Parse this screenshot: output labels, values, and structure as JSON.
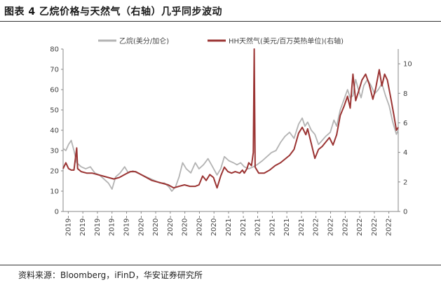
{
  "figure": {
    "title": "图表 4 乙烷价格与天然气（右轴）几乎同步波动",
    "source": "资料来源：Bloomberg，iFinD，华安证券研究所"
  },
  "colors": {
    "ethane": "#b3b3b3",
    "gas": "#9b3433",
    "axis": "#888888"
  },
  "chart_data": {
    "type": "line",
    "title": "乙烷价格与天然气（右轴）几乎同步波动",
    "legend_position": "top",
    "y_left": {
      "min": 0,
      "max": 80,
      "ticks": [
        0,
        10,
        20,
        30,
        40,
        50,
        60,
        70,
        80
      ]
    },
    "y_right": {
      "min": 0,
      "max": 11,
      "ticks": [
        0,
        2,
        4,
        6,
        8,
        10
      ]
    },
    "x_range": [
      2019.0,
      2022.7
    ],
    "x_tick_labels": [
      "2019-",
      "2019-",
      "2019-",
      "2019-",
      "2019-",
      "2020-",
      "2020-",
      "2020-",
      "2020-",
      "2020-",
      "2020-",
      "2021-",
      "2021-",
      "2021-",
      "2021-",
      "2021-",
      "2021-",
      "2022-",
      "2022-",
      "2022-",
      "2022-",
      "2022-",
      "2022-"
    ],
    "series": [
      {
        "name": "乙烷(美分/加仑)",
        "axis": "left",
        "points": [
          [
            2019.0,
            31
          ],
          [
            2019.03,
            30
          ],
          [
            2019.06,
            33
          ],
          [
            2019.09,
            35
          ],
          [
            2019.12,
            30
          ],
          [
            2019.15,
            24
          ],
          [
            2019.2,
            22
          ],
          [
            2019.25,
            21
          ],
          [
            2019.3,
            22
          ],
          [
            2019.35,
            19
          ],
          [
            2019.4,
            18
          ],
          [
            2019.45,
            16
          ],
          [
            2019.5,
            14
          ],
          [
            2019.54,
            11
          ],
          [
            2019.58,
            17
          ],
          [
            2019.63,
            19
          ],
          [
            2019.68,
            22
          ],
          [
            2019.72,
            19
          ],
          [
            2019.77,
            20
          ],
          [
            2019.82,
            19
          ],
          [
            2019.87,
            18
          ],
          [
            2019.92,
            17
          ],
          [
            2019.97,
            16
          ],
          [
            2020.02,
            15
          ],
          [
            2020.07,
            14
          ],
          [
            2020.12,
            14
          ],
          [
            2020.17,
            12
          ],
          [
            2020.2,
            10
          ],
          [
            2020.24,
            12
          ],
          [
            2020.28,
            17
          ],
          [
            2020.32,
            24
          ],
          [
            2020.36,
            21
          ],
          [
            2020.41,
            19
          ],
          [
            2020.46,
            24
          ],
          [
            2020.5,
            21
          ],
          [
            2020.55,
            23
          ],
          [
            2020.6,
            26
          ],
          [
            2020.65,
            22
          ],
          [
            2020.7,
            18
          ],
          [
            2020.74,
            21
          ],
          [
            2020.78,
            27
          ],
          [
            2020.83,
            25
          ],
          [
            2020.88,
            24
          ],
          [
            2020.92,
            23
          ],
          [
            2020.96,
            24
          ],
          [
            2021.0,
            22
          ],
          [
            2021.05,
            21
          ],
          [
            2021.1,
            22
          ],
          [
            2021.14,
            23
          ],
          [
            2021.2,
            25
          ],
          [
            2021.25,
            27
          ],
          [
            2021.3,
            29
          ],
          [
            2021.35,
            30
          ],
          [
            2021.4,
            34
          ],
          [
            2021.45,
            37
          ],
          [
            2021.5,
            39
          ],
          [
            2021.55,
            36
          ],
          [
            2021.6,
            43
          ],
          [
            2021.64,
            46
          ],
          [
            2021.67,
            42
          ],
          [
            2021.7,
            44
          ],
          [
            2021.74,
            40
          ],
          [
            2021.78,
            38
          ],
          [
            2021.82,
            33
          ],
          [
            2021.86,
            35
          ],
          [
            2021.9,
            37
          ],
          [
            2021.95,
            39
          ],
          [
            2021.99,
            45
          ],
          [
            2022.02,
            42
          ],
          [
            2022.06,
            50
          ],
          [
            2022.1,
            55
          ],
          [
            2022.14,
            60
          ],
          [
            2022.17,
            56
          ],
          [
            2022.2,
            57
          ],
          [
            2022.23,
            65
          ],
          [
            2022.26,
            60
          ],
          [
            2022.29,
            56
          ],
          [
            2022.32,
            62
          ],
          [
            2022.36,
            65
          ],
          [
            2022.4,
            62
          ],
          [
            2022.44,
            58
          ],
          [
            2022.48,
            60
          ],
          [
            2022.52,
            63
          ],
          [
            2022.56,
            57
          ],
          [
            2022.6,
            52
          ],
          [
            2022.64,
            44
          ],
          [
            2022.68,
            38
          ],
          [
            2022.7,
            40
          ]
        ]
      },
      {
        "name": "HH天然气(美元/百万英热单位)(右轴)",
        "axis": "right",
        "points": [
          [
            2019.0,
            2.9
          ],
          [
            2019.03,
            3.3
          ],
          [
            2019.06,
            2.9
          ],
          [
            2019.09,
            2.8
          ],
          [
            2019.12,
            2.8
          ],
          [
            2019.15,
            4.3
          ],
          [
            2019.16,
            2.9
          ],
          [
            2019.2,
            2.7
          ],
          [
            2019.26,
            2.6
          ],
          [
            2019.32,
            2.6
          ],
          [
            2019.38,
            2.5
          ],
          [
            2019.44,
            2.4
          ],
          [
            2019.5,
            2.3
          ],
          [
            2019.56,
            2.2
          ],
          [
            2019.62,
            2.3
          ],
          [
            2019.68,
            2.5
          ],
          [
            2019.74,
            2.7
          ],
          [
            2019.8,
            2.7
          ],
          [
            2019.86,
            2.5
          ],
          [
            2019.92,
            2.3
          ],
          [
            2019.98,
            2.1
          ],
          [
            2020.04,
            2.0
          ],
          [
            2020.1,
            1.9
          ],
          [
            2020.16,
            1.8
          ],
          [
            2020.22,
            1.6
          ],
          [
            2020.28,
            1.7
          ],
          [
            2020.34,
            1.8
          ],
          [
            2020.4,
            1.7
          ],
          [
            2020.46,
            1.7
          ],
          [
            2020.5,
            1.8
          ],
          [
            2020.54,
            2.4
          ],
          [
            2020.58,
            2.1
          ],
          [
            2020.62,
            2.5
          ],
          [
            2020.66,
            2.3
          ],
          [
            2020.7,
            1.6
          ],
          [
            2020.74,
            2.4
          ],
          [
            2020.78,
            3.0
          ],
          [
            2020.82,
            2.7
          ],
          [
            2020.86,
            2.6
          ],
          [
            2020.9,
            2.7
          ],
          [
            2020.95,
            2.6
          ],
          [
            2020.98,
            2.8
          ],
          [
            2021.0,
            2.6
          ],
          [
            2021.03,
            2.9
          ],
          [
            2021.05,
            3.3
          ],
          [
            2021.08,
            3.1
          ],
          [
            2021.1,
            4.0
          ],
          [
            2021.11,
            11.0
          ],
          [
            2021.12,
            3.0
          ],
          [
            2021.16,
            2.6
          ],
          [
            2021.22,
            2.6
          ],
          [
            2021.28,
            2.8
          ],
          [
            2021.34,
            3.1
          ],
          [
            2021.4,
            3.3
          ],
          [
            2021.46,
            3.6
          ],
          [
            2021.5,
            3.8
          ],
          [
            2021.55,
            4.2
          ],
          [
            2021.6,
            5.3
          ],
          [
            2021.64,
            5.7
          ],
          [
            2021.68,
            5.2
          ],
          [
            2021.7,
            5.6
          ],
          [
            2021.74,
            4.6
          ],
          [
            2021.78,
            3.6
          ],
          [
            2021.82,
            4.2
          ],
          [
            2021.86,
            4.4
          ],
          [
            2021.9,
            4.7
          ],
          [
            2021.94,
            5.0
          ],
          [
            2021.98,
            4.5
          ],
          [
            2022.02,
            5.2
          ],
          [
            2022.06,
            6.5
          ],
          [
            2022.1,
            7.1
          ],
          [
            2022.14,
            7.8
          ],
          [
            2022.17,
            7.0
          ],
          [
            2022.2,
            9.3
          ],
          [
            2022.23,
            7.5
          ],
          [
            2022.26,
            8.1
          ],
          [
            2022.3,
            8.9
          ],
          [
            2022.34,
            9.3
          ],
          [
            2022.38,
            8.6
          ],
          [
            2022.42,
            7.6
          ],
          [
            2022.45,
            8.3
          ],
          [
            2022.49,
            9.6
          ],
          [
            2022.52,
            8.5
          ],
          [
            2022.55,
            9.3
          ],
          [
            2022.58,
            8.9
          ],
          [
            2022.62,
            7.6
          ],
          [
            2022.65,
            6.6
          ],
          [
            2022.68,
            5.5
          ],
          [
            2022.7,
            5.7
          ]
        ]
      }
    ]
  }
}
